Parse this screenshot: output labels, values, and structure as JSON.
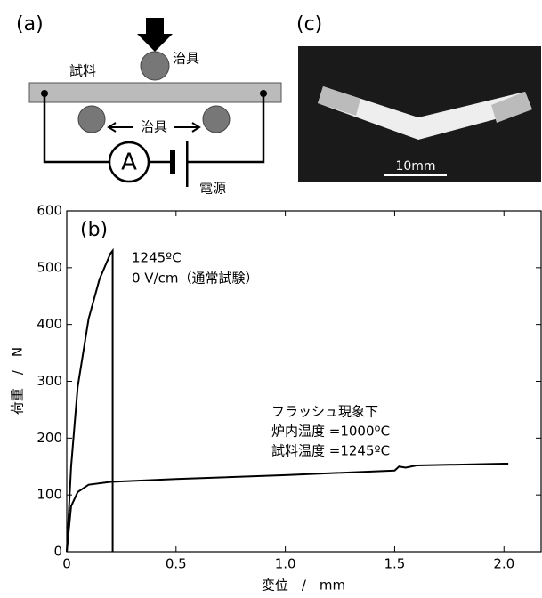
{
  "diagram": {
    "label": "(a)",
    "sample": "試料",
    "jig_top": "治具",
    "jig_bottom": "治具",
    "ammeter": "A",
    "power": "電源"
  },
  "photo": {
    "label": "(c)",
    "scale": "10mm"
  },
  "chart_data": {
    "type": "line",
    "panel": "(b)",
    "x_label": "変位　/　mm",
    "y_label": "荷重　/　N",
    "xlim": [
      0,
      2.17
    ],
    "ylim": [
      0,
      600
    ],
    "xticks": [
      0,
      0.5,
      {
        "value": 1,
        "label": "1.0"
      },
      1.5,
      {
        "value": 2,
        "label": "2.0"
      }
    ],
    "yticks": [
      0,
      100,
      200,
      300,
      400,
      500,
      600
    ],
    "series": [
      {
        "color": "#000000",
        "x": [
          0,
          0.02,
          0.05,
          0.1,
          0.15,
          0.2,
          0.21,
          0.21
        ],
        "values": [
          0,
          150,
          290,
          410,
          480,
          525,
          530,
          0
        ]
      },
      {
        "color": "#000000",
        "x": [
          0,
          0.02,
          0.05,
          0.1,
          0.2,
          0.5,
          1.0,
          1.5,
          1.52,
          1.55,
          1.6,
          2.0,
          2.02
        ],
        "values": [
          0,
          80,
          105,
          118,
          123,
          128,
          135,
          143,
          150,
          148,
          152,
          155,
          155
        ]
      }
    ],
    "annotations": [
      "1245ºC",
      "0 V/cm（通常試験）",
      "フラッシュ現象下",
      "炉内温度 =1000ºC",
      "試料温度 =1245ºC"
    ]
  }
}
